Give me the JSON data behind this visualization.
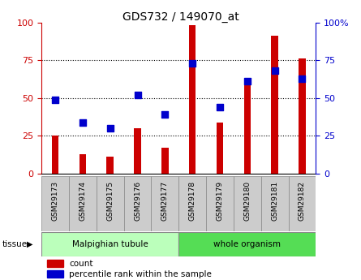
{
  "title": "GDS732 / 149070_at",
  "samples": [
    "GSM29173",
    "GSM29174",
    "GSM29175",
    "GSM29176",
    "GSM29177",
    "GSM29178",
    "GSM29179",
    "GSM29180",
    "GSM29181",
    "GSM29182"
  ],
  "counts": [
    25,
    13,
    11,
    30,
    17,
    98,
    34,
    62,
    91,
    76
  ],
  "percentiles": [
    49,
    34,
    30,
    52,
    39,
    73,
    44,
    61,
    68,
    63
  ],
  "groups": [
    "Malpighian tubule",
    "Malpighian tubule",
    "Malpighian tubule",
    "Malpighian tubule",
    "Malpighian tubule",
    "whole organism",
    "whole organism",
    "whole organism",
    "whole organism",
    "whole organism"
  ],
  "malpighian_color": "#bbffbb",
  "whole_color": "#55dd55",
  "bar_color": "#cc0000",
  "dot_color": "#0000cc",
  "ylim": [
    0,
    100
  ],
  "yticks": [
    0,
    25,
    50,
    75,
    100
  ],
  "grid_lines": [
    25,
    50,
    75
  ],
  "left_tick_color": "#cc0000",
  "right_tick_color": "#0000cc",
  "legend_count_label": "count",
  "legend_pct_label": "percentile rank within the sample",
  "tissue_label": "tissue",
  "malpighian_label": "Malpighian tubule",
  "whole_label": "whole organism",
  "right_ylabel": "%",
  "bar_width": 0.25,
  "dot_size": 35
}
